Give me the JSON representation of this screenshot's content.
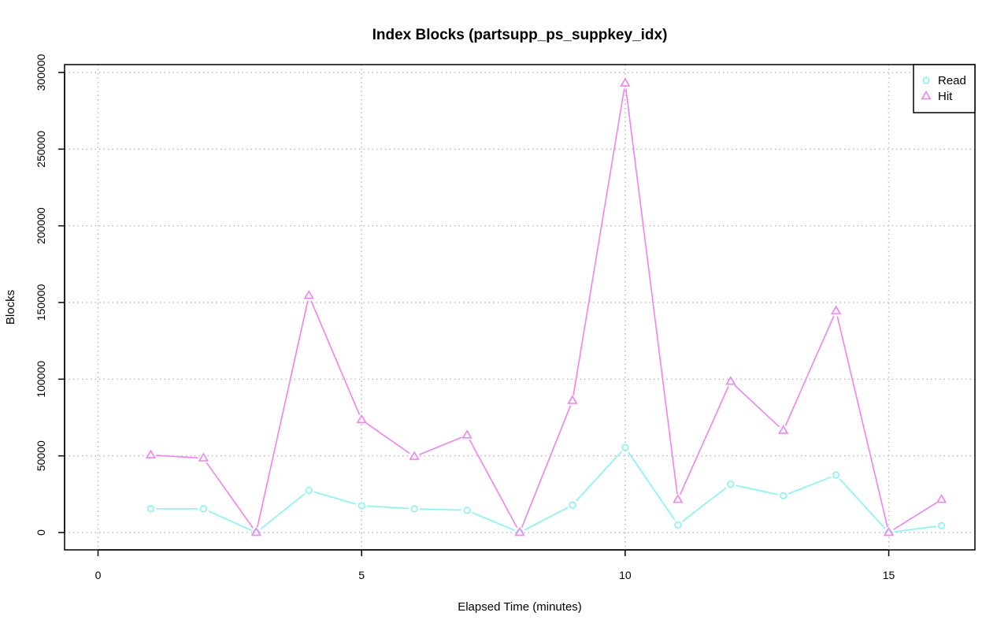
{
  "chart_data": {
    "type": "line",
    "title": "Index Blocks (partsupp_ps_suppkey_idx)",
    "xlabel": "Elapsed Time (minutes)",
    "ylabel": "Blocks",
    "xlim": [
      0,
      16
    ],
    "ylim": [
      0,
      300000
    ],
    "x_ticks": [
      0,
      5,
      10,
      15
    ],
    "y_ticks": [
      0,
      50000,
      100000,
      150000,
      200000,
      250000,
      300000
    ],
    "grid": true,
    "legend": "top-right",
    "x": [
      1,
      2,
      3,
      4,
      5,
      6,
      7,
      8,
      9,
      10,
      11,
      12,
      13,
      14,
      15,
      16
    ],
    "series": [
      {
        "name": "Read",
        "color": "#7ff7f7",
        "marker": "circle",
        "values": [
          15500,
          15500,
          0,
          27500,
          17500,
          15500,
          14500,
          0,
          18000,
          55500,
          5000,
          31500,
          24000,
          37500,
          0,
          4500
        ]
      },
      {
        "name": "Hit",
        "color": "#f57ff5",
        "marker": "triangle",
        "values": [
          50500,
          48500,
          0,
          154500,
          73500,
          49500,
          63500,
          0,
          86000,
          293000,
          21500,
          98500,
          66500,
          144500,
          0,
          21500
        ]
      }
    ]
  }
}
